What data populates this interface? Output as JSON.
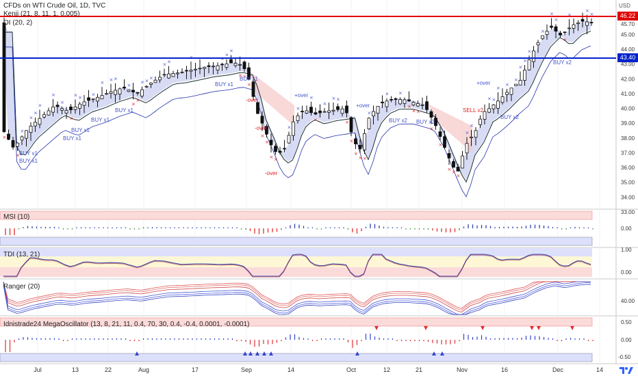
{
  "chart": {
    "title": "CFDs on WTI Crude Oil, 1D, TVC",
    "currency": "USD",
    "overlays": [
      "Kenji (21, 8, 11, 1, 0.005)",
      "OI (20, 2)"
    ],
    "price_levels": {
      "upper": {
        "label": "46.22",
        "color": "#e00000"
      },
      "lower": {
        "label": "43.40",
        "color": "#0022cc"
      }
    },
    "price_ticks": [
      "45.70",
      "45.00",
      "44.00",
      "43.00",
      "42.00",
      "41.00",
      "40.00",
      "39.00",
      "38.00",
      "37.00",
      "36.00",
      "35.00",
      "34.00",
      "33.00"
    ],
    "signals": [
      {
        "text": "BUY x1",
        "color": "#4455cc"
      },
      {
        "text": "BUY x1",
        "color": "#4455cc"
      },
      {
        "text": "BUY x1",
        "color": "#4455cc"
      },
      {
        "text": "BUY x1",
        "color": "#4455cc"
      },
      {
        "text": "BUY x1",
        "color": "#4455cc"
      },
      {
        "text": "BUY x1",
        "color": "#4455cc"
      },
      {
        "text": "BUY x1",
        "color": "#4455cc"
      },
      {
        "text": "BUY x1",
        "color": "#4455cc"
      },
      {
        "text": "-over",
        "color": "#e02020"
      },
      {
        "text": "-over",
        "color": "#e02020"
      },
      {
        "text": "-over",
        "color": "#e02020"
      },
      {
        "text": "+over",
        "color": "#4455cc"
      },
      {
        "text": "+over",
        "color": "#4455cc"
      },
      {
        "text": "BUY x2",
        "color": "#4455cc"
      },
      {
        "text": "BUY x2",
        "color": "#4455cc"
      },
      {
        "text": "SELL x2",
        "color": "#e02020"
      },
      {
        "text": "+over",
        "color": "#4455cc"
      },
      {
        "text": "BUY x2",
        "color": "#4455cc"
      },
      {
        "text": "BUY x2",
        "color": "#4455cc"
      }
    ],
    "msi": {
      "title": "MSI (10)",
      "ticks": [
        "0.00"
      ]
    },
    "tdi": {
      "title": "TDI (13, 21)",
      "ticks": [
        "1.00",
        "0.00"
      ]
    },
    "ranger": {
      "title": "Ranger (20)",
      "ticks": [
        "40.00"
      ]
    },
    "mega": {
      "title": "Idnistrade24 MegaOscillator (13, 8, 21, 11, 0.4, 70, 30, 0.4, -0.4, 0.0001, -0.0001)",
      "ticks": [
        "0.50",
        "0.00",
        "-0.50"
      ]
    },
    "x_labels": [
      "Jul",
      "13",
      "22",
      "Aug",
      "17",
      "Sep",
      "14",
      "Oct",
      "12",
      "21",
      "Nov",
      "16",
      "Dec",
      "14"
    ],
    "logo": "tv-logo-icon"
  }
}
